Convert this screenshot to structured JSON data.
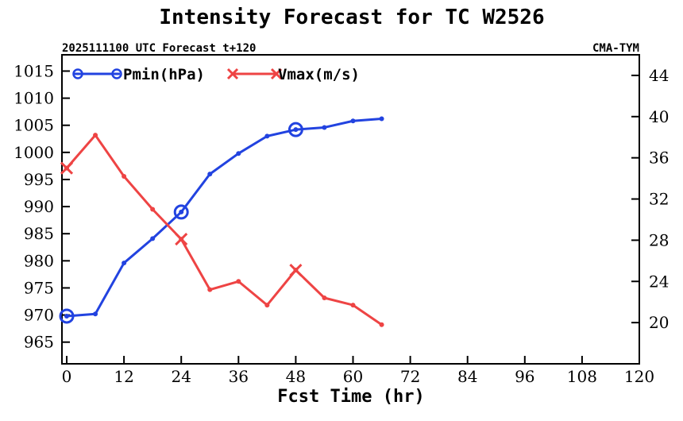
{
  "chart_data": {
    "type": "line",
    "title": "Intensity Forecast for TC W2526",
    "subtitle_left": "2025111100 UTC Forecast t+120",
    "subtitle_right": "CMA-TYM",
    "xlabel": "Fcst Time (hr)",
    "xlim": [
      -1,
      120
    ],
    "xticks": [
      0,
      12,
      24,
      36,
      48,
      60,
      72,
      84,
      96,
      108,
      120
    ],
    "y_left": {
      "ylim": [
        961,
        1018
      ],
      "ticks": [
        965,
        970,
        975,
        980,
        985,
        990,
        995,
        1000,
        1005,
        1010,
        1015
      ]
    },
    "y_right": {
      "ylim": [
        16,
        46
      ],
      "ticks": [
        20,
        24,
        28,
        32,
        36,
        40,
        44
      ]
    },
    "series": [
      {
        "name": "Pmin(hPa)",
        "color": "#2243e0",
        "marker": "circle",
        "axis": "left",
        "x": [
          0,
          6,
          12,
          18,
          24,
          30,
          36,
          42,
          48,
          54,
          60,
          66
        ],
        "values": [
          969.8,
          970.2,
          979.6,
          984.1,
          989.0,
          996.0,
          999.8,
          1003.0,
          1004.2,
          1004.6,
          1005.8,
          1006.2
        ],
        "marker_x": [
          0,
          24,
          48
        ]
      },
      {
        "name": "Vmax(m/s)",
        "color": "#ee4444",
        "marker": "x",
        "axis": "right",
        "x": [
          0,
          6,
          12,
          18,
          24,
          30,
          36,
          42,
          48,
          54,
          60,
          66
        ],
        "values": [
          35.0,
          38.2,
          34.2,
          31.0,
          28.1,
          23.2,
          24.0,
          21.7,
          25.1,
          22.4,
          21.7,
          19.8
        ],
        "marker_x": [
          0,
          24,
          48
        ]
      }
    ]
  }
}
